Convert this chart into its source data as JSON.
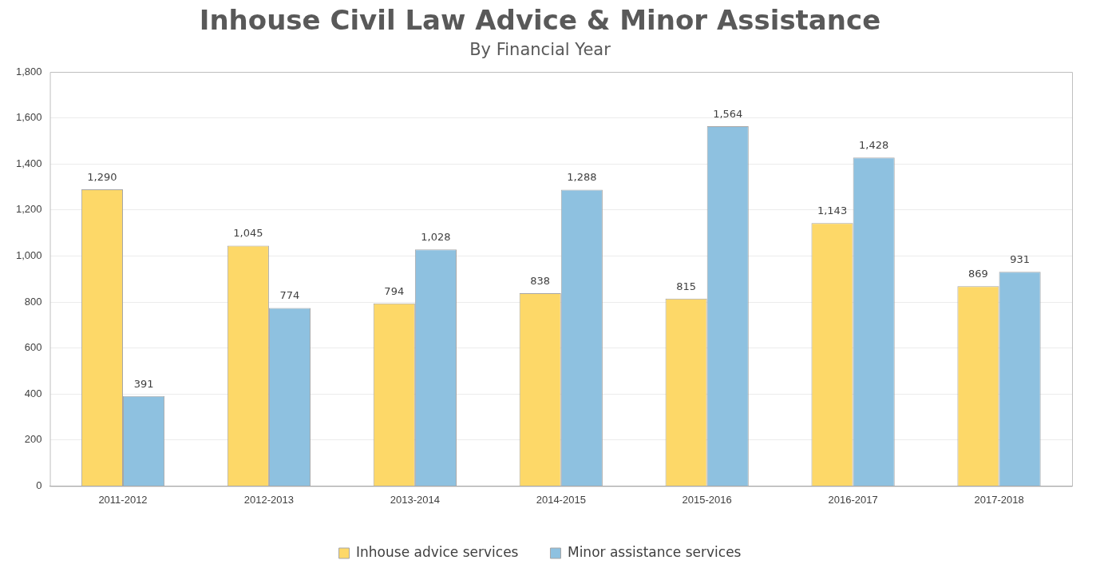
{
  "chart_data": {
    "type": "bar",
    "title": "Inhouse Civil Law Advice & Minor Assistance",
    "subtitle": "By Financial Year",
    "categories": [
      "2011-2012",
      "2012-2013",
      "2013-2014",
      "2014-2015",
      "2015-2016",
      "2016-2017",
      "2017-2018"
    ],
    "series": [
      {
        "name": "Inhouse advice services",
        "color": "#fdd868",
        "values": [
          1290,
          1045,
          794,
          838,
          815,
          1143,
          869
        ],
        "value_labels": [
          "1,290",
          "1,045",
          "794",
          "838",
          "815",
          "1,143",
          "869"
        ]
      },
      {
        "name": "Minor assistance services",
        "color": "#8ec1e0",
        "values": [
          391,
          774,
          1028,
          1288,
          1564,
          1428,
          931
        ],
        "value_labels": [
          "391",
          "774",
          "1,028",
          "1,288",
          "1,564",
          "1,428",
          "931"
        ]
      }
    ],
    "ylim": [
      0,
      1800
    ],
    "yticks": [
      {
        "value": 0,
        "label": "0"
      },
      {
        "value": 200,
        "label": "200"
      },
      {
        "value": 400,
        "label": "400"
      },
      {
        "value": 600,
        "label": "600"
      },
      {
        "value": 800,
        "label": "800"
      },
      {
        "value": 1000,
        "label": "1,000"
      },
      {
        "value": 1200,
        "label": "1,200"
      },
      {
        "value": 1400,
        "label": "1,400"
      },
      {
        "value": 1600,
        "label": "1,600"
      },
      {
        "value": 1800,
        "label": "1,800"
      }
    ],
    "grid": "y",
    "legend": "bottom"
  }
}
